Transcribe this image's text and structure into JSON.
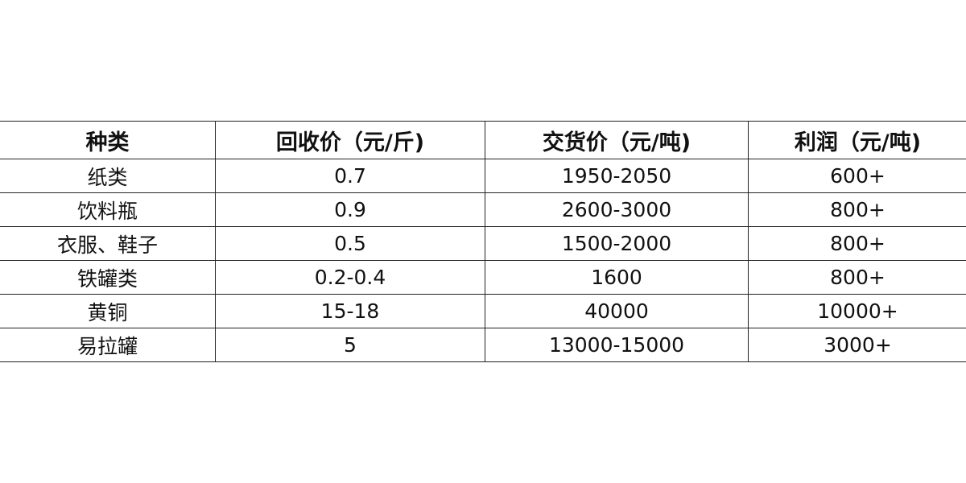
{
  "table": {
    "headers": [
      "种类",
      "回收价（元/斤)",
      "交货价（元/吨)",
      "利润（元/吨)"
    ],
    "rows": [
      [
        "纸类",
        "0.7",
        "1950-2050",
        "600+"
      ],
      [
        "饮料瓶",
        "0.9",
        "2600-3000",
        "800+"
      ],
      [
        "衣服、鞋子",
        "0.5",
        "1500-2000",
        "800+"
      ],
      [
        "铁罐类",
        "0.2-0.4",
        "1600",
        "800+"
      ],
      [
        "黄铜",
        "15-18",
        "40000",
        "10000+"
      ],
      [
        "易拉罐",
        "5",
        "13000-15000",
        "3000+"
      ]
    ]
  }
}
